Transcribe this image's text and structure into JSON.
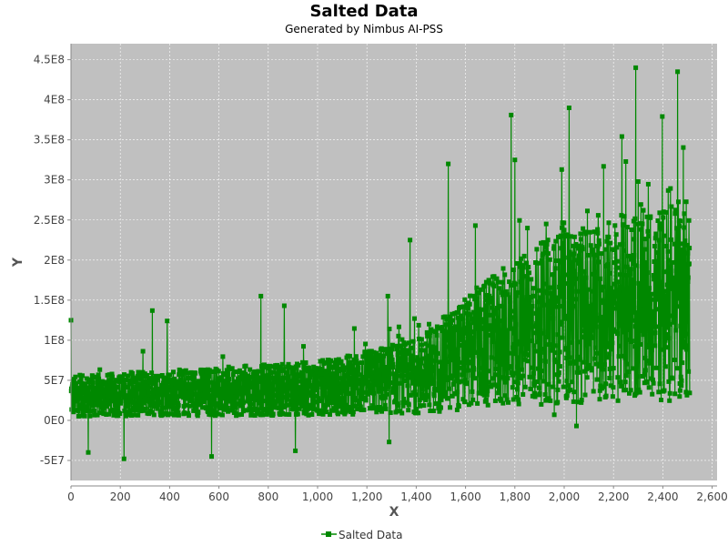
{
  "chart_data": {
    "type": "line",
    "title": "Salted Data",
    "subtitle": "Generated by Nimbus AI-PSS",
    "xlabel": "X",
    "ylabel": "Y",
    "xlim": [
      0,
      2620
    ],
    "ylim": [
      -75000000,
      470000000
    ],
    "x_ticks": [
      0,
      200,
      400,
      600,
      800,
      1000,
      1200,
      1400,
      1600,
      1800,
      2000,
      2200,
      2400,
      2600
    ],
    "x_tick_labels": [
      "0",
      "200",
      "400",
      "600",
      "800",
      "1,000",
      "1,200",
      "1,400",
      "1,600",
      "1,800",
      "2,000",
      "2,200",
      "2,400",
      "2,600"
    ],
    "y_ticks": [
      -50000000,
      0,
      50000000,
      100000000,
      150000000,
      200000000,
      250000000,
      300000000,
      350000000,
      400000000,
      450000000
    ],
    "y_tick_labels": [
      "-5E7",
      "0E0",
      "5E7",
      "1E8",
      "1.5E8",
      "2E8",
      "2.5E8",
      "3E8",
      "3.5E8",
      "4E8",
      "4.5E8"
    ],
    "grid": true,
    "legend": "bottom",
    "series": [
      {
        "name": "Salted Data",
        "color": "#008800",
        "marker": "square",
        "x_start": 0,
        "x_step": 1,
        "n_points": 2510,
        "trend_breakpoints": [
          [
            0,
            30000000
          ],
          [
            1000,
            40000000
          ],
          [
            1400,
            55000000
          ],
          [
            1800,
            110000000
          ],
          [
            2000,
            130000000
          ],
          [
            2500,
            150000000
          ]
        ],
        "peaks": [
          {
            "x": 0,
            "y": 125000000
          },
          {
            "x": 330,
            "y": 137000000
          },
          {
            "x": 390,
            "y": 124000000
          },
          {
            "x": 770,
            "y": 155000000
          },
          {
            "x": 865,
            "y": 143000000
          },
          {
            "x": 1285,
            "y": 155000000
          },
          {
            "x": 1375,
            "y": 225000000
          },
          {
            "x": 1530,
            "y": 320000000
          },
          {
            "x": 1640,
            "y": 243000000
          },
          {
            "x": 1785,
            "y": 381000000
          },
          {
            "x": 1800,
            "y": 325000000
          },
          {
            "x": 1990,
            "y": 313000000
          },
          {
            "x": 2020,
            "y": 390000000
          },
          {
            "x": 2160,
            "y": 317000000
          },
          {
            "x": 2250,
            "y": 323000000
          },
          {
            "x": 2290,
            "y": 440000000
          },
          {
            "x": 2300,
            "y": 298000000
          },
          {
            "x": 2460,
            "y": 435000000
          },
          {
            "x": 2510,
            "y": 253000000
          }
        ],
        "troughs": [
          {
            "x": 70,
            "y": -40000000
          },
          {
            "x": 215,
            "y": -48000000
          },
          {
            "x": 570,
            "y": -45000000
          },
          {
            "x": 910,
            "y": -38000000
          },
          {
            "x": 1290,
            "y": -27000000
          },
          {
            "x": 1960,
            "y": 7000000
          },
          {
            "x": 2050,
            "y": -7000000
          }
        ]
      }
    ]
  }
}
